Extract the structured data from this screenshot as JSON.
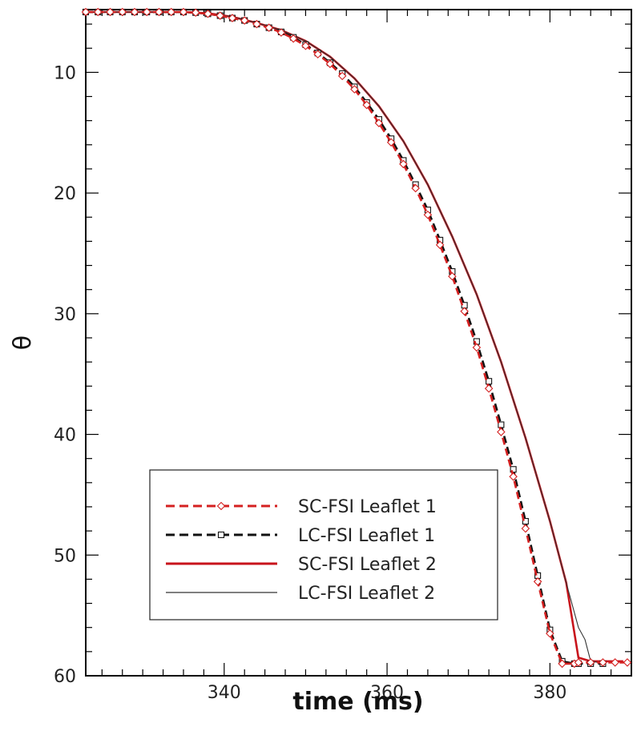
{
  "chart_data": {
    "type": "line",
    "title": "",
    "xlabel": "time (ms)",
    "ylabel": "θ",
    "xlim": [
      323,
      390
    ],
    "ylim": [
      60,
      4.8
    ],
    "y_inverted": true,
    "x_ticks": [
      340,
      360,
      380
    ],
    "y_ticks": [
      10,
      20,
      30,
      40,
      50,
      60
    ],
    "grid": false,
    "legend_position": "lower-left",
    "series": [
      {
        "name": "SC-FSI Leaflet 1",
        "color": "#d42020",
        "line": "dashed",
        "marker": "diamond",
        "x": [
          323,
          324.5,
          326,
          327.5,
          329,
          330.5,
          332,
          333.5,
          335,
          336.5,
          338,
          339.5,
          341,
          342.5,
          344,
          345.5,
          347,
          348.5,
          350,
          351.5,
          353,
          354.5,
          356,
          357.5,
          359,
          360.5,
          362,
          363.5,
          365,
          366.5,
          368,
          369.5,
          371,
          372.5,
          374,
          375.5,
          377,
          378.5,
          380,
          381.5,
          383,
          383.5,
          385,
          386.5,
          388,
          389.5
        ],
        "y": [
          5,
          5,
          5,
          5,
          5,
          5,
          5,
          5,
          5,
          5.05,
          5.15,
          5.3,
          5.5,
          5.7,
          6,
          6.3,
          6.7,
          7.2,
          7.8,
          8.5,
          9.3,
          10.3,
          11.4,
          12.7,
          14.2,
          15.8,
          17.6,
          19.6,
          21.8,
          24.3,
          26.9,
          29.8,
          32.8,
          36.2,
          39.8,
          43.5,
          47.8,
          52.2,
          56.5,
          59,
          59,
          58.9,
          58.9,
          58.9,
          58.9,
          58.9
        ]
      },
      {
        "name": "LC-FSI Leaflet 1",
        "color": "#111111",
        "line": "dashed",
        "marker": "square",
        "x": [
          323,
          324.5,
          326,
          327.5,
          329,
          330.5,
          332,
          333.5,
          335,
          336.5,
          338,
          339.5,
          341,
          342.5,
          344,
          345.5,
          347,
          348.5,
          350,
          351.5,
          353,
          354.5,
          356,
          357.5,
          359,
          360.5,
          362,
          363.5,
          365,
          366.5,
          368,
          369.5,
          371,
          372.5,
          374,
          375.5,
          377,
          378.5,
          380,
          381.5,
          383,
          383.5,
          385,
          386.5
        ],
        "y": [
          5,
          5,
          5,
          5,
          5,
          5,
          5,
          5,
          5,
          5.05,
          5.15,
          5.3,
          5.5,
          5.7,
          6,
          6.3,
          6.65,
          7.1,
          7.7,
          8.4,
          9.2,
          10.1,
          11.2,
          12.5,
          13.9,
          15.5,
          17.3,
          19.3,
          21.4,
          23.9,
          26.5,
          29.3,
          32.3,
          35.6,
          39.2,
          42.9,
          47.2,
          51.7,
          56.2,
          58.8,
          59,
          59,
          59,
          59
        ]
      },
      {
        "name": "SC-FSI Leaflet 2",
        "color": "#c8141c",
        "line": "solid",
        "marker": "none",
        "x": [
          323,
          326,
          329,
          332,
          335,
          338,
          341,
          344,
          347,
          350,
          353,
          356,
          359,
          362,
          365,
          368,
          371,
          374,
          377,
          380,
          382,
          383.5,
          385,
          387,
          389
        ],
        "y": [
          5,
          5,
          5,
          5,
          5,
          5.1,
          5.4,
          5.9,
          6.5,
          7.4,
          8.7,
          10.5,
          12.8,
          15.7,
          19.3,
          23.6,
          28.4,
          34,
          40.3,
          47.2,
          52.3,
          58.5,
          58.8,
          58.8,
          58.8
        ]
      },
      {
        "name": "LC-FSI Leaflet 2",
        "color": "#333333",
        "line": "solid-thin",
        "marker": "none",
        "x": [
          323,
          326,
          329,
          332,
          335,
          338,
          341,
          344,
          347,
          350,
          353,
          356,
          359,
          362,
          365,
          368,
          371,
          374,
          377,
          380,
          382,
          383.5,
          384.3,
          385,
          386
        ],
        "y": [
          5,
          5,
          5,
          5,
          5,
          5.1,
          5.4,
          5.9,
          6.5,
          7.4,
          8.7,
          10.5,
          12.8,
          15.7,
          19.3,
          23.6,
          28.4,
          34,
          40.3,
          47.2,
          52.3,
          56,
          57,
          58.8,
          58.9
        ]
      }
    ]
  }
}
